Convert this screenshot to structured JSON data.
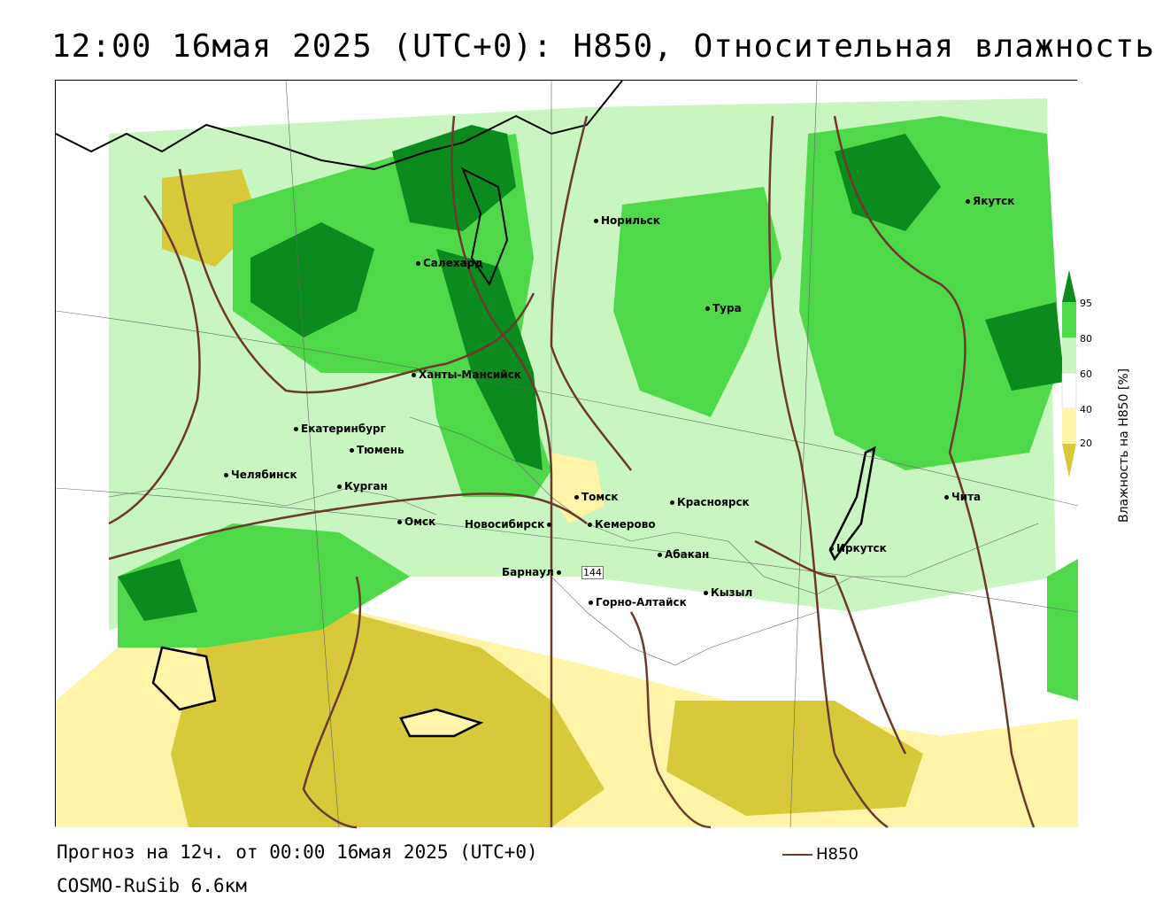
{
  "title": "12:00 16мая 2025 (UTC+0): H850, Относительная влажность",
  "footer": {
    "forecast": "Прогноз на 12ч. от 00:00 16мая 2025 (UTC+0)",
    "model": "COSMO-RuSib 6.6км"
  },
  "legend": {
    "line_label": "H850",
    "line_color": "#6b3a2a"
  },
  "colorbar": {
    "label": "Влажность на H850 [%]",
    "ticks": [
      "95",
      "80",
      "60",
      "40",
      "20"
    ],
    "colors": {
      "very_wet": "#0b8a1e",
      "wet": "#4fd94a",
      "moist": "#c8f5c0",
      "neutral": "#ffffff",
      "dry": "#fff4a8",
      "very_dry": "#d8c93a"
    }
  },
  "isoline_label": "144",
  "cities": [
    {
      "name": "Норильск"
    },
    {
      "name": "Якутск"
    },
    {
      "name": "Салехард"
    },
    {
      "name": "Тура"
    },
    {
      "name": "Ханты-Мансийск"
    },
    {
      "name": "Екатеринбург"
    },
    {
      "name": "Тюмень"
    },
    {
      "name": "Челябинск"
    },
    {
      "name": "Курган"
    },
    {
      "name": "Томск"
    },
    {
      "name": "Красноярск"
    },
    {
      "name": "Омск"
    },
    {
      "name": "Новосибирск"
    },
    {
      "name": "Кемерово"
    },
    {
      "name": "Абакан"
    },
    {
      "name": "Иркутск"
    },
    {
      "name": "Чита"
    },
    {
      "name": "Барнаул"
    },
    {
      "name": "Горно-Алтайск"
    },
    {
      "name": "Кызыл"
    }
  ]
}
